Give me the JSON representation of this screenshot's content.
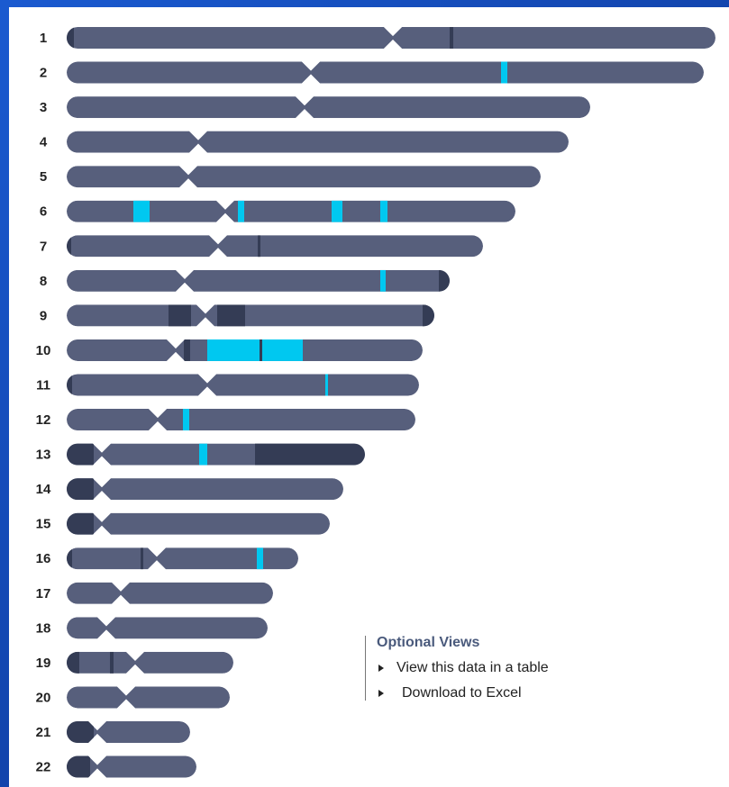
{
  "chromosomes": [
    "1",
    "2",
    "3",
    "4",
    "5",
    "6",
    "7",
    "8",
    "9",
    "10",
    "11",
    "12",
    "13",
    "14",
    "15",
    "16",
    "17",
    "18",
    "19",
    "20",
    "21",
    "22"
  ],
  "optional_views": {
    "title": "Optional Views",
    "links": [
      "View this data in a table",
      "Download to Excel"
    ]
  }
}
